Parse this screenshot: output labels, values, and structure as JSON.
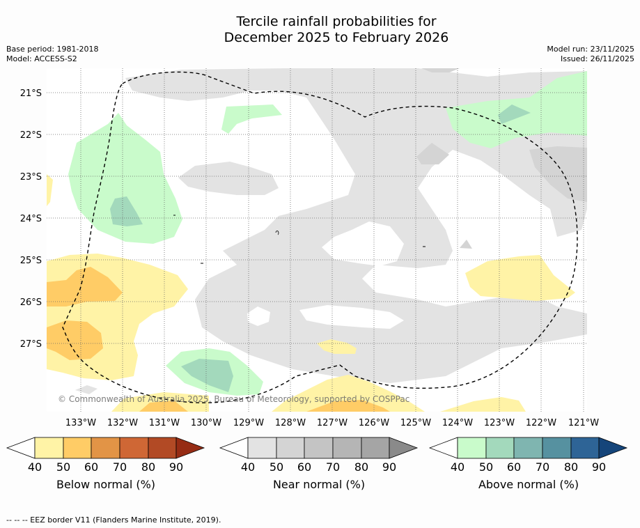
{
  "title_line1": "Tercile rainfall probabilities for",
  "title_line2": "December 2025 to February 2026",
  "base_period": "Base period: 1981-2018",
  "model": "Model: ACCESS-S2",
  "model_run": "Model run: 23/11/2025",
  "issued": "Issued: 26/11/2025",
  "copyright": "© Commonwealth of Australia 2025, Bureau of Meteorology, supported by COSPPac",
  "lat_labels": [
    "21°S",
    "22°S",
    "23°S",
    "24°S",
    "25°S",
    "26°S",
    "27°S"
  ],
  "lon_labels": [
    "133°W",
    "132°W",
    "131°W",
    "130°W",
    "129°W",
    "128°W",
    "127°W",
    "126°W",
    "125°W",
    "124°W",
    "123°W",
    "122°W",
    "121°W"
  ],
  "colorbars": [
    {
      "label": "Below normal (%)",
      "ticks": [
        "40",
        "50",
        "60",
        "70",
        "80",
        "90"
      ],
      "colors": [
        "#fff3a6",
        "#ffcc66",
        "#e29446",
        "#cf6735",
        "#b24a25",
        "#962c14"
      ]
    },
    {
      "label": "Near normal (%)",
      "ticks": [
        "40",
        "50",
        "60",
        "70",
        "80",
        "90"
      ],
      "colors": [
        "#e3e3e3",
        "#d4d4d4",
        "#c4c4c4",
        "#b5b5b5",
        "#a5a5a5",
        "#8a8a8a"
      ]
    },
    {
      "label": "Above normal (%)",
      "ticks": [
        "40",
        "50",
        "60",
        "70",
        "80",
        "90"
      ],
      "colors": [
        "#c9fbcb",
        "#a3d9bc",
        "#7fb5b0",
        "#5691a0",
        "#2e6496",
        "#15457a"
      ]
    }
  ],
  "footer": "--  --  -- EEZ border V11 (Flanders Marine Institute, 2019)."
}
